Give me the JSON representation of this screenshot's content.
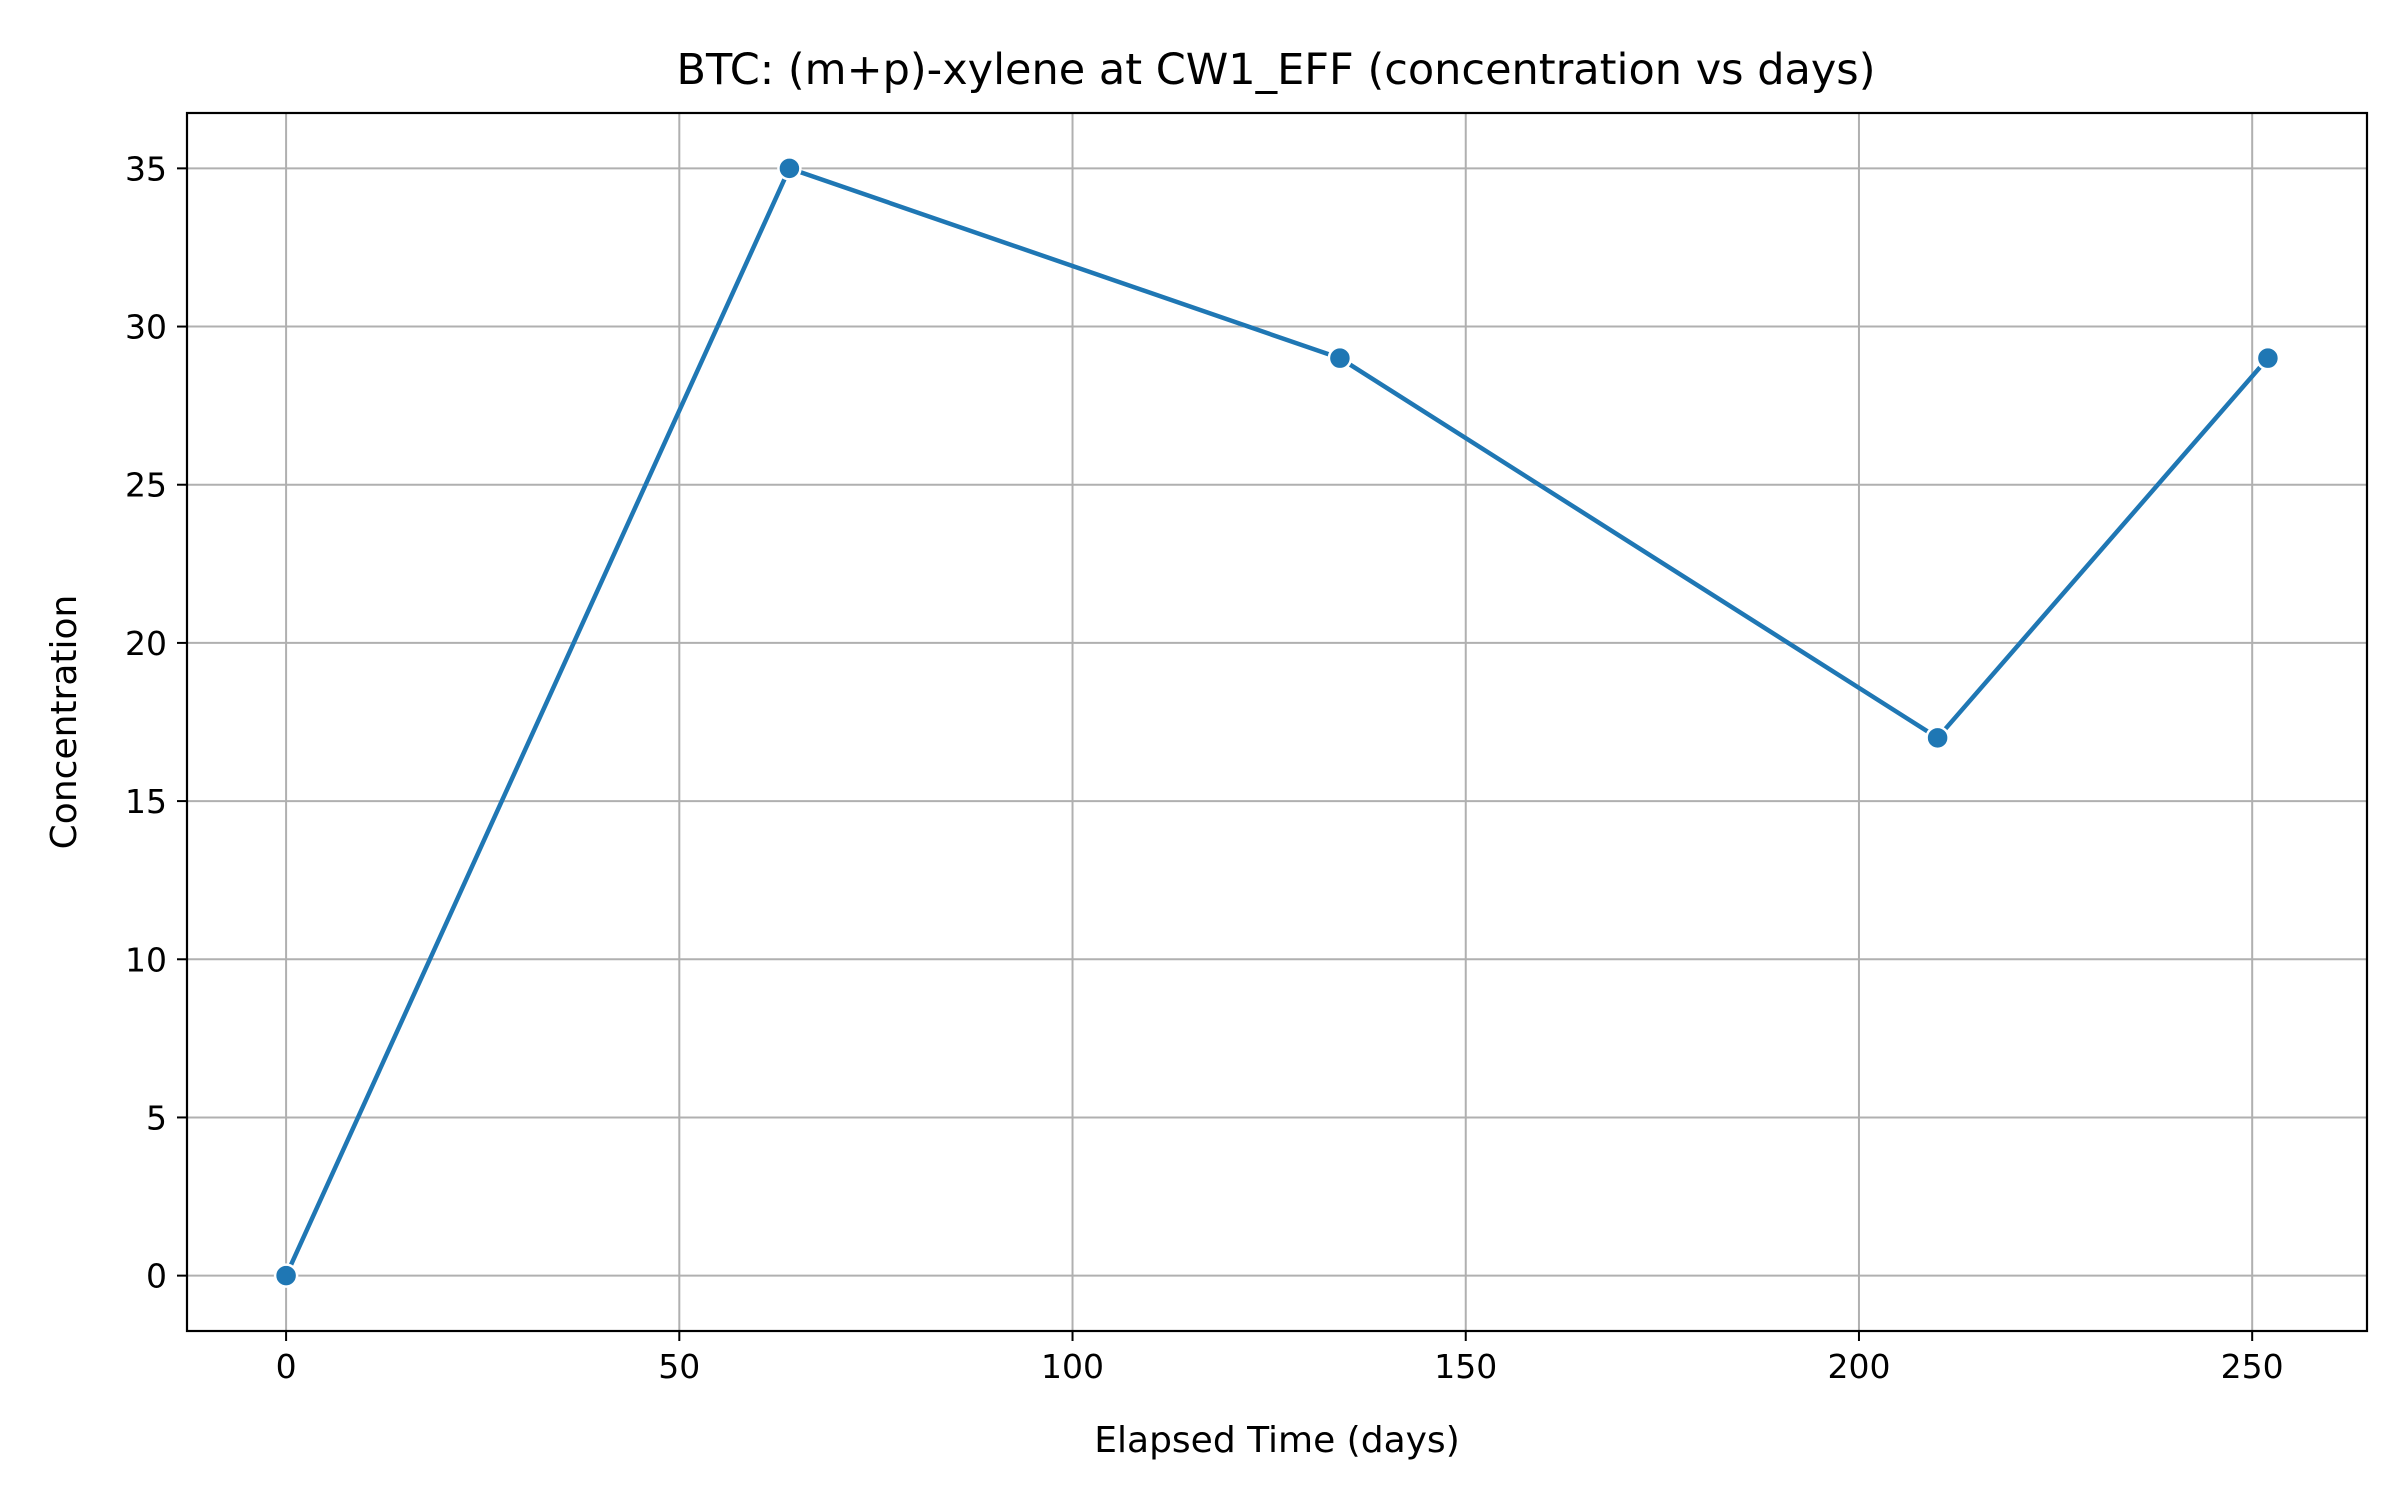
{
  "chart_data": {
    "type": "line",
    "title": "BTC: (m+p)-xylene at CW1_EFF (concentration vs days)",
    "xlabel": "Elapsed Time (days)",
    "ylabel": "Concentration",
    "xlim": [
      -12.6,
      264.6
    ],
    "ylim": [
      -1.75,
      36.75
    ],
    "xticks": [
      0,
      50,
      100,
      150,
      200,
      250
    ],
    "yticks": [
      0,
      5,
      10,
      15,
      20,
      25,
      30,
      35
    ],
    "grid": true,
    "legend": "none",
    "series": [
      {
        "color": "#1f77b4",
        "marker": "circle",
        "x": [
          0,
          64,
          134,
          210,
          252
        ],
        "y": [
          0,
          35,
          29,
          17,
          29
        ]
      }
    ]
  }
}
